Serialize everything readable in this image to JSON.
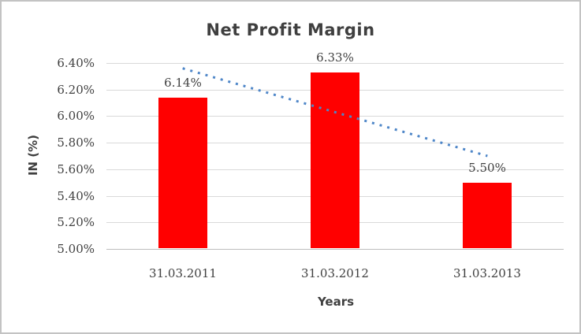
{
  "chart_data": {
    "type": "bar",
    "title": "Net Profit Margin",
    "xlabel": "Years",
    "ylabel": "IN (%)",
    "categories": [
      "31.03.2011",
      "31.03.2012",
      "31.03.2013"
    ],
    "values": [
      6.14,
      6.33,
      5.5
    ],
    "data_labels": [
      "6.14%",
      "6.33%",
      "5.50%"
    ],
    "yticks": [
      "6.40%",
      "6.20%",
      "6.00%",
      "5.80%",
      "5.60%",
      "5.40%",
      "5.20%",
      "5.00%"
    ],
    "ylim": [
      5.0,
      6.4
    ],
    "ytick_step": 0.2,
    "grid": true,
    "legend": "none",
    "bar_color": "#ff0000",
    "trendline": {
      "type": "linear",
      "style": "dotted",
      "color": "#4e86c8",
      "from_value": 6.36,
      "to_value": 5.7
    }
  }
}
